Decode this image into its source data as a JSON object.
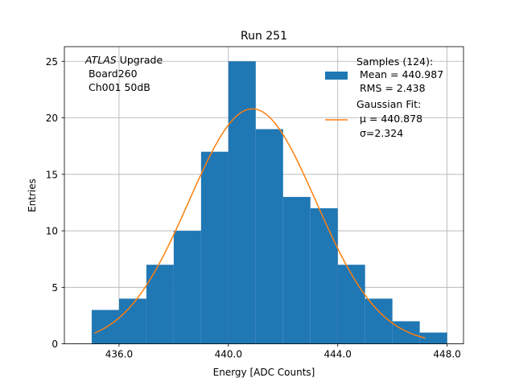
{
  "chart_data": {
    "type": "bar",
    "title": "Run 251",
    "xlabel": "Energy [ADC Counts]",
    "ylabel": "Entries",
    "xlim": [
      434.0,
      448.6
    ],
    "ylim": [
      0,
      26.3
    ],
    "grid": true,
    "x_ticks": [
      436.0,
      440.0,
      444.0,
      448.0
    ],
    "x_tick_labels": [
      "436.0",
      "440.0",
      "444.0",
      "448.0"
    ],
    "y_ticks": [
      0,
      5,
      10,
      15,
      20,
      25
    ],
    "y_tick_labels": [
      "0",
      "5",
      "10",
      "15",
      "20",
      "25"
    ],
    "histogram": {
      "name": "Samples (124):",
      "color": "#1f77b4",
      "bin_edges": [
        435,
        436,
        437,
        438,
        439,
        440,
        441,
        442,
        443,
        444,
        445,
        446,
        447,
        448
      ],
      "counts": [
        3,
        4,
        7,
        10,
        17,
        25,
        19,
        13,
        12,
        7,
        4,
        2,
        1
      ]
    },
    "fit": {
      "name": "Gaussian Fit:",
      "color": "#ff7f0e",
      "mu": 440.878,
      "sigma": 2.324,
      "amplitude": 20.8,
      "x_range": [
        435.1,
        447.2
      ]
    },
    "legend": {
      "position": "upper right",
      "hist_lines": [
        "Samples (124):",
        " Mean = 440.987",
        " RMS = 2.438"
      ],
      "fit_lines": [
        "Gaussian Fit:",
        " μ = 440.878",
        " σ=2.324"
      ]
    },
    "annotation": {
      "position": "upper left",
      "line1_italic": "ATLAS",
      "line1_rest": " Upgrade",
      "line2": " Board260",
      "line3": " Ch001 50dB"
    }
  }
}
